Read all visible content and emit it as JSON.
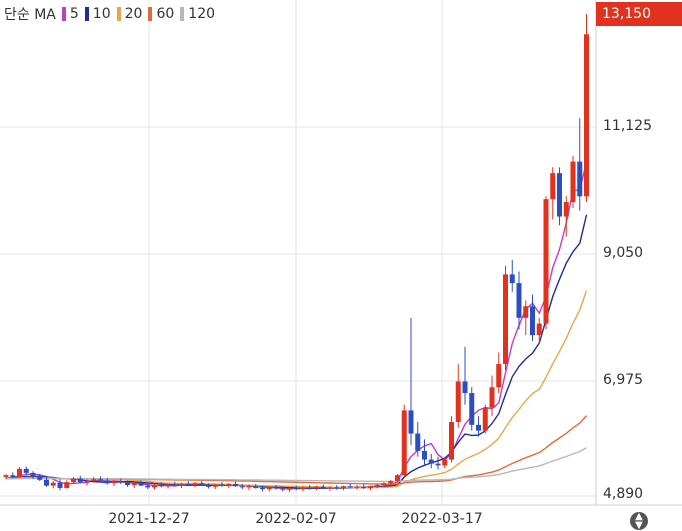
{
  "legend": {
    "label": "단순 MA",
    "items": [
      {
        "label": "5",
        "color": "#c63bc6"
      },
      {
        "label": "10",
        "color": "#1e2f8f"
      },
      {
        "label": "20",
        "color": "#e6a74a"
      },
      {
        "label": "60",
        "color": "#e06a3c"
      },
      {
        "label": "120",
        "color": "#b8b8b8"
      }
    ]
  },
  "current_price": "13,150",
  "colors": {
    "up": "#e0321e",
    "down": "#2c4ec3",
    "grid": "#e6e6e6",
    "axis": "#cfcfcf"
  },
  "chart_data": {
    "type": "candlestick",
    "x_tick_labels": [
      "2021-12-27",
      "2022-02-07",
      "2022-03-17"
    ],
    "y_tick_labels": [
      "11,125",
      "9,050",
      "6,975",
      "4,890"
    ],
    "ylim": [
      4890,
      13150
    ],
    "series_names": [
      "5",
      "10",
      "20",
      "60",
      "120"
    ],
    "candles": [
      [
        5150,
        5200,
        5110,
        5180
      ],
      [
        5180,
        5230,
        5130,
        5150
      ],
      [
        5150,
        5320,
        5140,
        5290
      ],
      [
        5290,
        5330,
        5180,
        5220
      ],
      [
        5220,
        5250,
        5120,
        5170
      ],
      [
        5170,
        5200,
        5080,
        5100
      ],
      [
        5100,
        5150,
        4980,
        5000
      ],
      [
        5000,
        5080,
        4950,
        5050
      ],
      [
        5050,
        5110,
        4920,
        4960
      ],
      [
        4960,
        5090,
        4950,
        5060
      ],
      [
        5060,
        5150,
        5030,
        5120
      ],
      [
        5120,
        5170,
        5040,
        5060
      ],
      [
        5060,
        5110,
        5000,
        5080
      ],
      [
        5080,
        5150,
        5050,
        5110
      ],
      [
        5110,
        5160,
        5060,
        5090
      ],
      [
        5090,
        5130,
        5020,
        5040
      ],
      [
        5040,
        5100,
        4990,
        5070
      ],
      [
        5070,
        5120,
        5030,
        5050
      ],
      [
        5050,
        5090,
        4980,
        5010
      ],
      [
        5010,
        5070,
        4960,
        5040
      ],
      [
        5040,
        5090,
        4990,
        5000
      ],
      [
        5000,
        5050,
        4940,
        4970
      ],
      [
        4970,
        5030,
        4930,
        5010
      ],
      [
        5010,
        5060,
        4970,
        4990
      ],
      [
        4990,
        5040,
        4950,
        5020
      ],
      [
        5020,
        5070,
        4980,
        5000
      ],
      [
        5000,
        5050,
        4960,
        5030
      ],
      [
        5030,
        5080,
        4990,
        5010
      ],
      [
        5010,
        5060,
        4970,
        5040
      ],
      [
        5040,
        5080,
        4990,
        5000
      ],
      [
        5000,
        5040,
        4950,
        4980
      ],
      [
        4980,
        5030,
        4940,
        5020
      ],
      [
        5020,
        5060,
        4980,
        5000
      ],
      [
        5000,
        5040,
        4960,
        5030
      ],
      [
        5030,
        5070,
        4980,
        4990
      ],
      [
        4990,
        5030,
        4940,
        4970
      ],
      [
        4970,
        5020,
        4920,
        4990
      ],
      [
        4990,
        5030,
        4950,
        4960
      ],
      [
        4960,
        5000,
        4900,
        4940
      ],
      [
        4940,
        4990,
        4900,
        4970
      ],
      [
        4970,
        5010,
        4930,
        4950
      ],
      [
        4950,
        4990,
        4900,
        4930
      ],
      [
        4930,
        4980,
        4890,
        4960
      ],
      [
        4960,
        5000,
        4920,
        4940
      ],
      [
        4940,
        4990,
        4900,
        4970
      ],
      [
        4970,
        5010,
        4930,
        4960
      ],
      [
        4960,
        5000,
        4920,
        4980
      ],
      [
        4980,
        5020,
        4940,
        4950
      ],
      [
        4950,
        4990,
        4910,
        4970
      ],
      [
        4970,
        5010,
        4930,
        4960
      ],
      [
        4960,
        5000,
        4920,
        4990
      ],
      [
        4990,
        5030,
        4950,
        4970
      ],
      [
        4970,
        5010,
        4930,
        4980
      ],
      [
        4980,
        5020,
        4940,
        4960
      ],
      [
        4960,
        5000,
        4920,
        4990
      ],
      [
        4990,
        5030,
        4960,
        5010
      ],
      [
        5010,
        5060,
        4980,
        5040
      ],
      [
        5040,
        5100,
        5000,
        5080
      ],
      [
        5080,
        5200,
        5050,
        5180
      ],
      [
        5180,
        6400,
        5150,
        6300
      ],
      [
        6300,
        7900,
        5700,
        5900
      ],
      [
        5900,
        6100,
        5500,
        5600
      ],
      [
        5600,
        5800,
        5350,
        5450
      ],
      [
        5450,
        5550,
        5300,
        5380
      ],
      [
        5380,
        5500,
        5280,
        5350
      ],
      [
        5350,
        5500,
        5300,
        5450
      ],
      [
        5450,
        6200,
        5400,
        6100
      ],
      [
        6100,
        7100,
        6000,
        6800
      ],
      [
        6800,
        7400,
        6400,
        6600
      ],
      [
        6600,
        6700,
        5950,
        6050
      ],
      [
        6050,
        6200,
        5850,
        5950
      ],
      [
        5950,
        6400,
        5900,
        6350
      ],
      [
        6350,
        6900,
        6200,
        6700
      ],
      [
        6700,
        7300,
        6600,
        7100
      ],
      [
        7100,
        8800,
        7000,
        8650
      ],
      [
        8650,
        8900,
        8350,
        8500
      ],
      [
        8500,
        8700,
        7700,
        7900
      ],
      [
        7900,
        8200,
        7600,
        8100
      ],
      [
        8100,
        8300,
        7500,
        7600
      ],
      [
        7600,
        7900,
        7450,
        7800
      ],
      [
        7800,
        10000,
        7700,
        9950
      ],
      [
        9950,
        10500,
        9600,
        10400
      ],
      [
        10400,
        10500,
        9500,
        9650
      ],
      [
        9650,
        10000,
        9300,
        9900
      ],
      [
        9900,
        10700,
        9800,
        10600
      ],
      [
        10600,
        11350,
        9750,
        10000
      ],
      [
        10000,
        13150,
        9900,
        12800
      ]
    ]
  }
}
